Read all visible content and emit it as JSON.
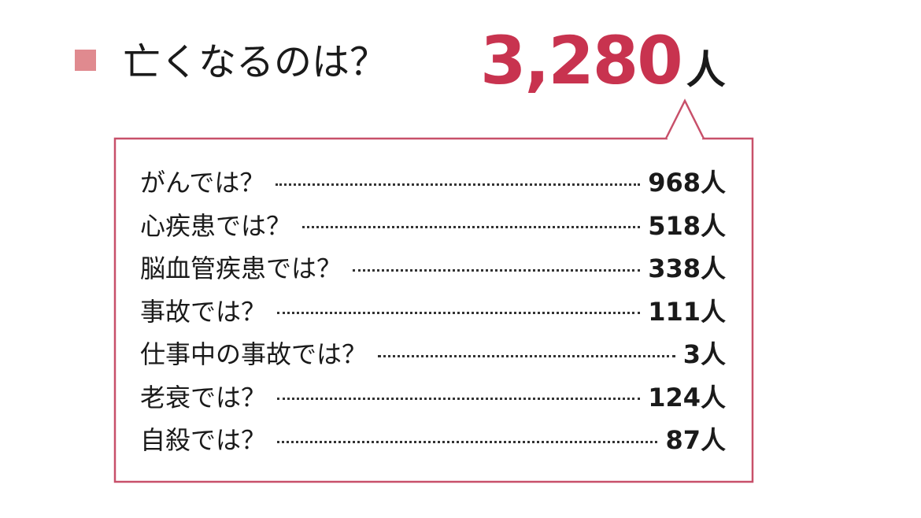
{
  "header": {
    "title": "亡くなるのは？",
    "total": "3,280",
    "total_unit": "人"
  },
  "list": {
    "rows": [
      {
        "label": "がんでは？",
        "value": "968",
        "unit": "人"
      },
      {
        "label": "心疾患では？",
        "value": "518",
        "unit": "人"
      },
      {
        "label": "脳血管疾患では？",
        "value": "338",
        "unit": "人"
      },
      {
        "label": "事故では？",
        "value": "111",
        "unit": "人"
      },
      {
        "label": "仕事中の事故では？",
        "value": "3",
        "unit": "人"
      },
      {
        "label": "老衰では？",
        "value": "124",
        "unit": "人"
      },
      {
        "label": "自殺では？",
        "value": "87",
        "unit": "人"
      }
    ]
  }
}
